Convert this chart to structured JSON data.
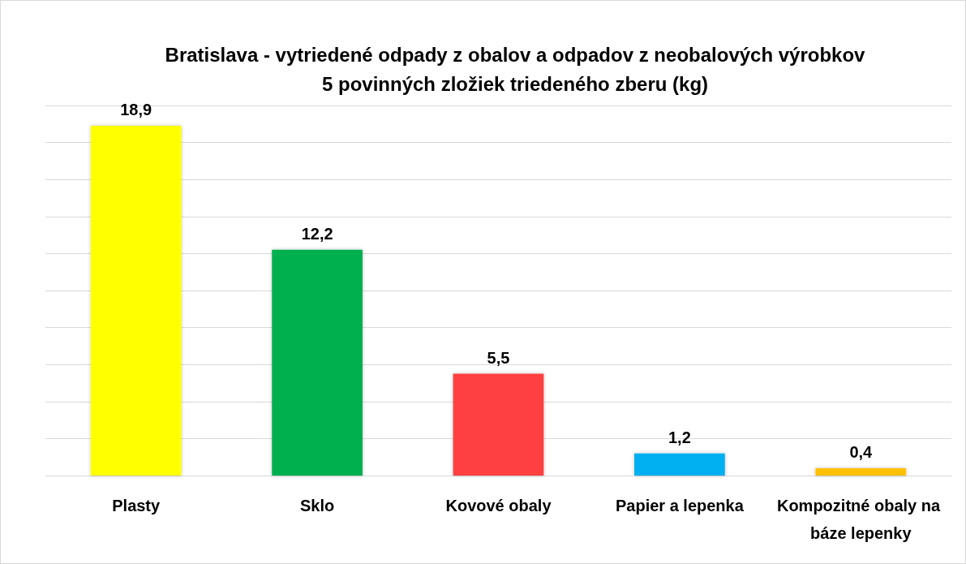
{
  "chart_data": {
    "type": "bar",
    "title": "Bratislava - vytriedené odpady z obalov a odpadov z neobalových výrobkov",
    "subtitle": "5 povinných zložiek triedeného zberu (kg)",
    "categories": [
      "Plasty",
      "Sklo",
      "Kovové obaly",
      "Papier a lepenka",
      "Kompozitné obaly na báze lepenky"
    ],
    "values": [
      18.9,
      12.2,
      5.5,
      1.2,
      0.4
    ],
    "colors": [
      "#ffff00",
      "#00b050",
      "#ff4040",
      "#00b0f0",
      "#ffc000"
    ],
    "value_labels": [
      "18,9",
      "12,2",
      "5,5",
      "1,2",
      "0,4"
    ],
    "ylim": [
      0,
      20
    ],
    "yticks": [
      {
        "value": 0,
        "label": null
      },
      {
        "value": 2,
        "label": null
      },
      {
        "value": 4,
        "label": null
      },
      {
        "value": 6,
        "label": null
      },
      {
        "value": 8,
        "label": null
      },
      {
        "value": 10,
        "label": null
      },
      {
        "value": 12,
        "label": null
      },
      {
        "value": 14,
        "label": null
      },
      {
        "value": 16,
        "label": null
      },
      {
        "value": 18,
        "label": null
      },
      {
        "value": 20,
        "label": null
      }
    ],
    "tick_labels": "x",
    "grid": "y"
  }
}
